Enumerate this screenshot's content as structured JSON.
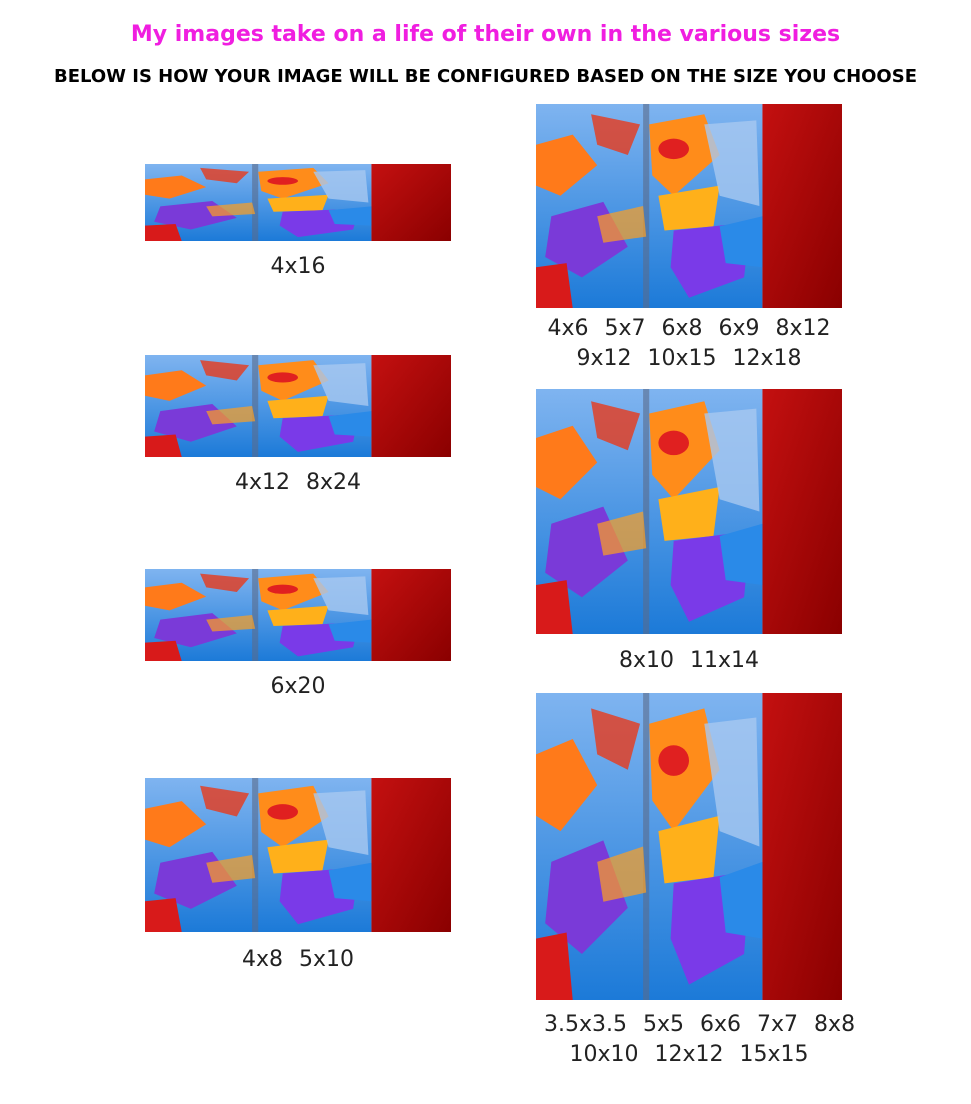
{
  "header": {
    "title": "My images take on a life of their own in the various sizes",
    "subtitle": "BELOW IS HOW YOUR IMAGE WILL BE CONFIGURED BASED ON THE SIZE YOU CHOOSE"
  },
  "panels": [
    {
      "lines": [
        [
          "4x16"
        ]
      ]
    },
    {
      "lines": [
        [
          "4x12",
          "8x24"
        ]
      ]
    },
    {
      "lines": [
        [
          "6x20"
        ]
      ]
    },
    {
      "lines": [
        [
          "4x8",
          "5x10"
        ]
      ]
    },
    {
      "lines": [
        [
          "4x6",
          "5x7",
          "6x8",
          "6x9",
          "8x12"
        ],
        [
          "9x12",
          "10x15",
          "12x18"
        ]
      ]
    },
    {
      "lines": [
        [
          "8x10",
          "11x14"
        ]
      ]
    },
    {
      "lines": [
        [
          "3.5x3.5",
          "5x5",
          "6x6",
          "7x7",
          "8x8"
        ],
        [
          "10x10",
          "12x12",
          "15x15"
        ]
      ]
    }
  ]
}
